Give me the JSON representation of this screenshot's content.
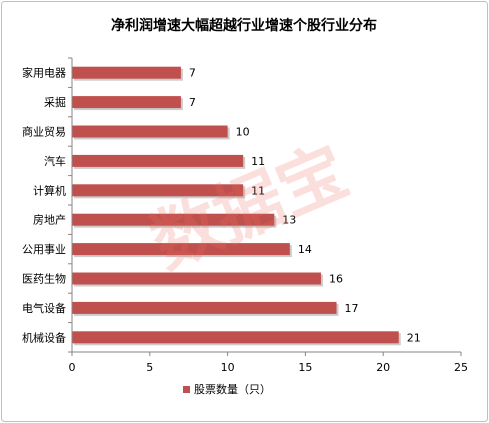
{
  "chart_data": {
    "type": "bar",
    "orientation": "horizontal",
    "title": "净利润增速大幅超越行业增速个股行业分布",
    "categories": [
      "家用电器",
      "采掘",
      "商业贸易",
      "汽车",
      "计算机",
      "房地产",
      "公用事业",
      "医药生物",
      "电气设备",
      "机械设备"
    ],
    "series": [
      {
        "name": "股票数量（只）",
        "values": [
          7,
          7,
          10,
          11,
          11,
          13,
          14,
          16,
          17,
          21
        ]
      }
    ],
    "xlim": [
      0,
      25
    ],
    "xticks": [
      0,
      5,
      10,
      15,
      20,
      25
    ],
    "xlabel": "",
    "ylabel": "",
    "grid": false,
    "legend_position": "bottom",
    "data_labels": true
  },
  "watermark": {
    "text": "数据宝"
  },
  "colors": {
    "bar_fill": "#c0504d",
    "bar_shadow": "#a3a3a3",
    "axis": "#868686",
    "text": "#000000",
    "frame": "#bfbfbf"
  }
}
